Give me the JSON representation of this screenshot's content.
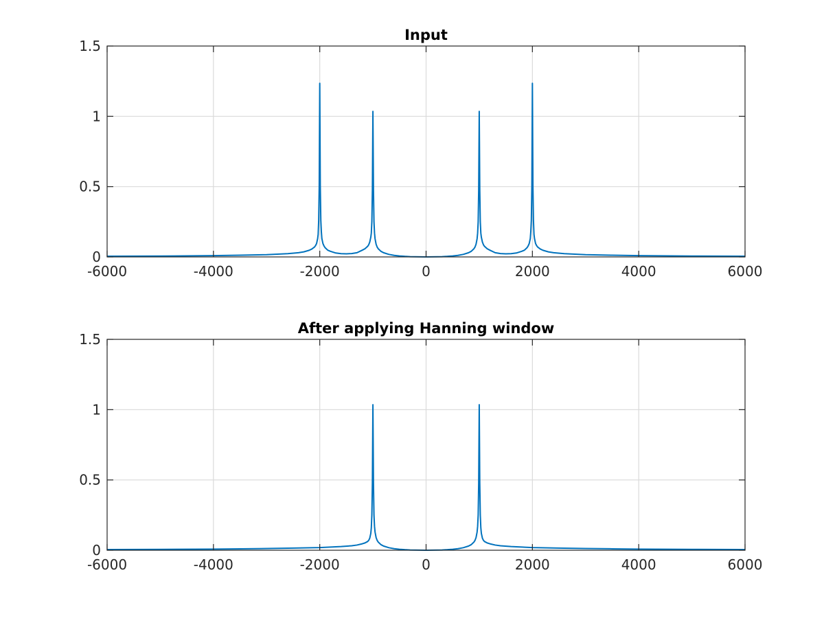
{
  "chart_data": [
    {
      "type": "line",
      "title": "Input",
      "xlabel": "",
      "ylabel": "",
      "xlim": [
        -6000,
        6000
      ],
      "ylim": [
        0,
        1.5
      ],
      "xticks": [
        -6000,
        -4000,
        -2000,
        0,
        2000,
        4000,
        6000
      ],
      "yticks": [
        0,
        0.5,
        1,
        1.5
      ],
      "xtick_labels": [
        "-6000",
        "-4000",
        "-2000",
        "0",
        "2000",
        "4000",
        "6000"
      ],
      "ytick_labels": [
        "0",
        "0.5",
        "1",
        "1.5"
      ],
      "grid": true,
      "series": [
        {
          "color": "#0072BD",
          "x": [
            -6000,
            -5000,
            -4000,
            -3500,
            -3000,
            -2600,
            -2400,
            -2300,
            -2200,
            -2150,
            -2100,
            -2080,
            -2060,
            -2040,
            -2030,
            -2020,
            -2010,
            -2000,
            -1990,
            -1980,
            -1970,
            -1960,
            -1940,
            -1920,
            -1900,
            -1850,
            -1800,
            -1700,
            -1600,
            -1500,
            -1400,
            -1300,
            -1200,
            -1150,
            -1100,
            -1080,
            -1060,
            -1040,
            -1030,
            -1020,
            -1010,
            -1000,
            -990,
            -980,
            -970,
            -960,
            -940,
            -920,
            -900,
            -850,
            -800,
            -700,
            -600,
            -500,
            -400,
            -300,
            -200,
            -100,
            0,
            100,
            200,
            300,
            400,
            500,
            600,
            700,
            800,
            850,
            900,
            920,
            940,
            960,
            970,
            980,
            990,
            1000,
            1010,
            1020,
            1030,
            1040,
            1060,
            1080,
            1100,
            1150,
            1200,
            1300,
            1400,
            1500,
            1600,
            1700,
            1800,
            1850,
            1900,
            1920,
            1940,
            1960,
            1970,
            1980,
            1990,
            2000,
            2010,
            2020,
            2030,
            2040,
            2060,
            2080,
            2100,
            2150,
            2200,
            2300,
            2400,
            2600,
            3000,
            3500,
            4000,
            5000,
            6000
          ],
          "y": [
            0.005,
            0.006,
            0.009,
            0.012,
            0.016,
            0.023,
            0.03,
            0.036,
            0.047,
            0.056,
            0.07,
            0.08,
            0.095,
            0.13,
            0.16,
            0.26,
            0.5,
            1.235,
            0.5,
            0.26,
            0.18,
            0.13,
            0.095,
            0.078,
            0.066,
            0.048,
            0.04,
            0.028,
            0.023,
            0.022,
            0.024,
            0.03,
            0.048,
            0.058,
            0.075,
            0.086,
            0.105,
            0.14,
            0.17,
            0.25,
            0.48,
            1.035,
            0.48,
            0.25,
            0.17,
            0.13,
            0.09,
            0.07,
            0.058,
            0.04,
            0.03,
            0.018,
            0.011,
            0.007,
            0.004,
            0.002,
            0.001,
            0.0005,
            0.0,
            0.0005,
            0.001,
            0.002,
            0.004,
            0.007,
            0.011,
            0.018,
            0.03,
            0.04,
            0.058,
            0.07,
            0.09,
            0.13,
            0.17,
            0.25,
            0.48,
            1.035,
            0.48,
            0.25,
            0.17,
            0.14,
            0.105,
            0.086,
            0.075,
            0.058,
            0.048,
            0.03,
            0.024,
            0.022,
            0.023,
            0.028,
            0.04,
            0.048,
            0.066,
            0.078,
            0.095,
            0.13,
            0.18,
            0.26,
            0.5,
            1.235,
            0.5,
            0.26,
            0.16,
            0.13,
            0.095,
            0.08,
            0.07,
            0.056,
            0.047,
            0.036,
            0.03,
            0.023,
            0.016,
            0.012,
            0.009,
            0.006,
            0.005
          ]
        }
      ]
    },
    {
      "type": "line",
      "title": "After applying Hanning window",
      "xlabel": "",
      "ylabel": "",
      "xlim": [
        -6000,
        6000
      ],
      "ylim": [
        0,
        1.5
      ],
      "xticks": [
        -6000,
        -4000,
        -2000,
        0,
        2000,
        4000,
        6000
      ],
      "yticks": [
        0,
        0.5,
        1,
        1.5
      ],
      "xtick_labels": [
        "-6000",
        "-4000",
        "-2000",
        "0",
        "2000",
        "4000",
        "6000"
      ],
      "ytick_labels": [
        "0",
        "0.5",
        "1",
        "1.5"
      ],
      "grid": true,
      "series": [
        {
          "color": "#0072BD",
          "x": [
            -6000,
            -5000,
            -4000,
            -3500,
            -3000,
            -2500,
            -2000,
            -1600,
            -1400,
            -1300,
            -1200,
            -1150,
            -1100,
            -1080,
            -1060,
            -1040,
            -1030,
            -1020,
            -1010,
            -1000,
            -990,
            -980,
            -970,
            -960,
            -940,
            -920,
            -900,
            -850,
            -800,
            -700,
            -600,
            -500,
            -400,
            -300,
            -200,
            -100,
            0,
            100,
            200,
            300,
            400,
            500,
            600,
            700,
            800,
            850,
            900,
            920,
            940,
            960,
            970,
            980,
            990,
            1000,
            1010,
            1020,
            1030,
            1040,
            1060,
            1080,
            1100,
            1150,
            1200,
            1300,
            1400,
            1600,
            2000,
            2500,
            3000,
            3500,
            4000,
            5000,
            6000
          ],
          "y": [
            0.005,
            0.006,
            0.008,
            0.01,
            0.012,
            0.015,
            0.019,
            0.026,
            0.032,
            0.037,
            0.046,
            0.052,
            0.062,
            0.07,
            0.085,
            0.12,
            0.16,
            0.25,
            0.48,
            1.035,
            0.48,
            0.25,
            0.17,
            0.13,
            0.09,
            0.07,
            0.058,
            0.04,
            0.03,
            0.018,
            0.011,
            0.007,
            0.004,
            0.002,
            0.001,
            0.0005,
            0.0,
            0.0005,
            0.001,
            0.002,
            0.004,
            0.007,
            0.011,
            0.018,
            0.03,
            0.04,
            0.058,
            0.07,
            0.09,
            0.13,
            0.17,
            0.25,
            0.48,
            1.035,
            0.48,
            0.25,
            0.16,
            0.12,
            0.085,
            0.07,
            0.062,
            0.052,
            0.046,
            0.037,
            0.032,
            0.026,
            0.019,
            0.015,
            0.012,
            0.01,
            0.008,
            0.006,
            0.005
          ]
        }
      ]
    }
  ]
}
